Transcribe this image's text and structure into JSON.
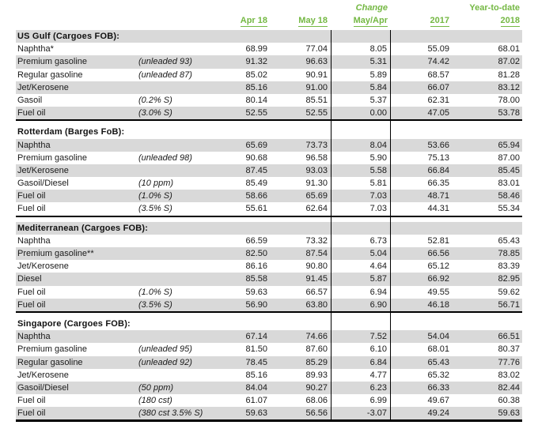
{
  "meta": {
    "accent_green": "#74b843",
    "zebra_gray": "#d9d9d9",
    "rule_color": "#000000"
  },
  "header": {
    "columns": {
      "apr": {
        "top": "",
        "label": "Apr 18"
      },
      "may": {
        "top": "",
        "label": "May 18"
      },
      "change": {
        "top": "Change",
        "label": "May/Apr"
      },
      "y2017": {
        "top": "",
        "label": "2017"
      },
      "ytd": {
        "top": "Year-to-date",
        "label": "2018"
      }
    }
  },
  "table": {
    "sections": [
      {
        "title": "US Gulf (Cargoes FOB):",
        "rows": [
          {
            "product": "Naphtha*",
            "spec": "",
            "apr18": "68.99",
            "may18": "77.04",
            "change": "8.05",
            "y2017": "55.09",
            "ytd2018": "68.01"
          },
          {
            "product": "Premium gasoline",
            "spec": "(unleaded 93)",
            "apr18": "91.32",
            "may18": "96.63",
            "change": "5.31",
            "y2017": "74.42",
            "ytd2018": "87.02"
          },
          {
            "product": "Regular gasoline",
            "spec": "(unleaded 87)",
            "apr18": "85.02",
            "may18": "90.91",
            "change": "5.89",
            "y2017": "68.57",
            "ytd2018": "81.28"
          },
          {
            "product": "Jet/Kerosene",
            "spec": "",
            "apr18": "85.16",
            "may18": "91.00",
            "change": "5.84",
            "y2017": "66.07",
            "ytd2018": "83.12"
          },
          {
            "product": "Gasoil",
            "spec": "(0.2% S)",
            "apr18": "80.14",
            "may18": "85.51",
            "change": "5.37",
            "y2017": "62.31",
            "ytd2018": "78.00"
          },
          {
            "product": "Fuel oil",
            "spec": "(3.0% S)",
            "apr18": "52.55",
            "may18": "52.55",
            "change": "0.00",
            "y2017": "47.05",
            "ytd2018": "53.78"
          }
        ]
      },
      {
        "title": "Rotterdam (Barges FoB):",
        "rows": [
          {
            "product": "Naphtha",
            "spec": "",
            "apr18": "65.69",
            "may18": "73.73",
            "change": "8.04",
            "y2017": "53.66",
            "ytd2018": "65.94"
          },
          {
            "product": "Premium gasoline",
            "spec": "(unleaded 98)",
            "apr18": "90.68",
            "may18": "96.58",
            "change": "5.90",
            "y2017": "75.13",
            "ytd2018": "87.00"
          },
          {
            "product": "Jet/Kerosene",
            "spec": "",
            "apr18": "87.45",
            "may18": "93.03",
            "change": "5.58",
            "y2017": "66.84",
            "ytd2018": "85.45"
          },
          {
            "product": "Gasoil/Diesel",
            "spec": "(10 ppm)",
            "apr18": "85.49",
            "may18": "91.30",
            "change": "5.81",
            "y2017": "66.35",
            "ytd2018": "83.01"
          },
          {
            "product": "Fuel oil",
            "spec": "(1.0% S)",
            "apr18": "58.66",
            "may18": "65.69",
            "change": "7.03",
            "y2017": "48.71",
            "ytd2018": "58.46"
          },
          {
            "product": "Fuel oil",
            "spec": "(3.5% S)",
            "apr18": "55.61",
            "may18": "62.64",
            "change": "7.03",
            "y2017": "44.31",
            "ytd2018": "55.34"
          }
        ]
      },
      {
        "title": "Mediterranean (Cargoes FOB):",
        "rows": [
          {
            "product": "Naphtha",
            "spec": "",
            "apr18": "66.59",
            "may18": "73.32",
            "change": "6.73",
            "y2017": "52.81",
            "ytd2018": "65.43"
          },
          {
            "product": "Premium gasoline**",
            "spec": "",
            "apr18": "82.50",
            "may18": "87.54",
            "change": "5.04",
            "y2017": "66.56",
            "ytd2018": "78.85"
          },
          {
            "product": "Jet/Kerosene",
            "spec": "",
            "apr18": "86.16",
            "may18": "90.80",
            "change": "4.64",
            "y2017": "65.12",
            "ytd2018": "83.39"
          },
          {
            "product": "Diesel",
            "spec": "",
            "apr18": "85.58",
            "may18": "91.45",
            "change": "5.87",
            "y2017": "66.92",
            "ytd2018": "82.95"
          },
          {
            "product": "Fuel oil",
            "spec": "(1.0% S)",
            "apr18": "59.63",
            "may18": "66.57",
            "change": "6.94",
            "y2017": "49.55",
            "ytd2018": "59.62"
          },
          {
            "product": "Fuel oil",
            "spec": "(3.5% S)",
            "apr18": "56.90",
            "may18": "63.80",
            "change": "6.90",
            "y2017": "46.18",
            "ytd2018": "56.71"
          }
        ]
      },
      {
        "title": "Singapore (Cargoes FOB):",
        "rows": [
          {
            "product": "Naphtha",
            "spec": "",
            "apr18": "67.14",
            "may18": "74.66",
            "change": "7.52",
            "y2017": "54.04",
            "ytd2018": "66.51"
          },
          {
            "product": "Premium gasoline",
            "spec": "(unleaded 95)",
            "apr18": "81.50",
            "may18": "87.60",
            "change": "6.10",
            "y2017": "68.01",
            "ytd2018": "80.37"
          },
          {
            "product": "Regular gasoline",
            "spec": "(unleaded 92)",
            "apr18": "78.45",
            "may18": "85.29",
            "change": "6.84",
            "y2017": "65.43",
            "ytd2018": "77.76"
          },
          {
            "product": "Jet/Kerosene",
            "spec": "",
            "apr18": "85.16",
            "may18": "89.93",
            "change": "4.77",
            "y2017": "65.32",
            "ytd2018": "83.02"
          },
          {
            "product": "Gasoil/Diesel",
            "spec": "(50 ppm)",
            "apr18": "84.04",
            "may18": "90.27",
            "change": "6.23",
            "y2017": "66.33",
            "ytd2018": "82.44"
          },
          {
            "product": "Fuel oil",
            "spec": "(180 cst)",
            "apr18": "61.07",
            "may18": "68.06",
            "change": "6.99",
            "y2017": "49.67",
            "ytd2018": "60.38"
          },
          {
            "product": "Fuel oil",
            "spec": "(380 cst 3.5% S)",
            "apr18": "59.63",
            "may18": "56.56",
            "change": "-3.07",
            "y2017": "49.24",
            "ytd2018": "59.63"
          }
        ]
      }
    ]
  }
}
